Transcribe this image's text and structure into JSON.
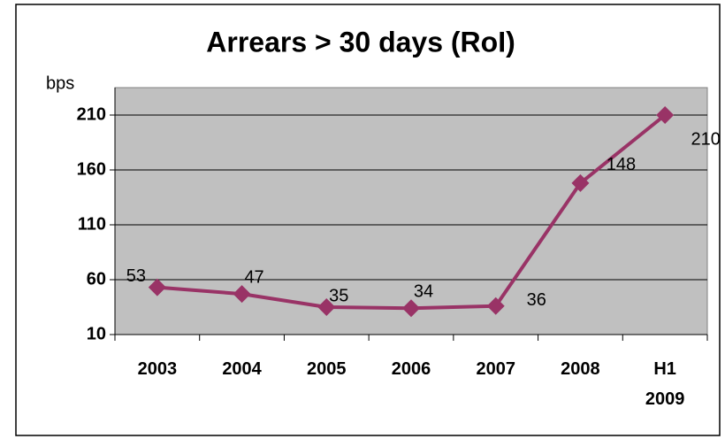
{
  "chart_data": {
    "type": "line",
    "title": "Arrears > 30 days (RoI)",
    "y_label": "bps",
    "categories": [
      "2003",
      "2004",
      "2005",
      "2006",
      "2007",
      "2008",
      "H1 2009"
    ],
    "series": [
      {
        "name": "Arrears > 30 days",
        "color": "#993366",
        "values": [
          53,
          47,
          35,
          34,
          36,
          148,
          210
        ]
      }
    ],
    "ylim": [
      10,
      235
    ],
    "yticks": [
      10,
      60,
      110,
      160,
      210
    ],
    "grid": true
  }
}
